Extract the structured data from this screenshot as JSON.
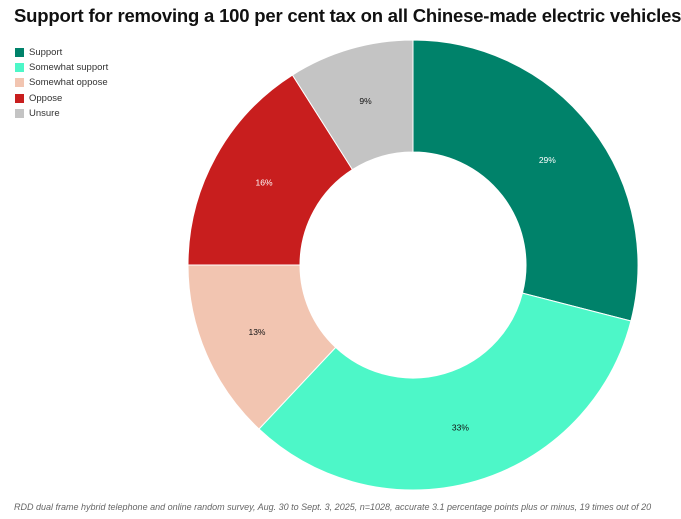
{
  "title": "Support for removing a 100 per cent tax on all Chinese-made electric vehicles",
  "footer": "RDD dual frame hybrid telephone and online random survey, Aug. 30 to Sept. 3, 2025, n=1028, accurate 3.1 percentage points plus or minus, 19 times out of 20",
  "chart_data": {
    "type": "pie",
    "donut": true,
    "legend_position": "top-left",
    "categories": [
      "Support",
      "Somewhat support",
      "Somewhat oppose",
      "Oppose",
      "Unsure"
    ],
    "values": [
      29,
      33,
      13,
      16,
      9
    ],
    "labels": [
      "29%",
      "33%",
      "13%",
      "16%",
      "9%"
    ],
    "colors": [
      "#00826a",
      "#4df7c8",
      "#f2c5b1",
      "#c81e1e",
      "#c4c4c4"
    ],
    "label_colors": [
      "#ffffff",
      "#111111",
      "#111111",
      "#ffffff",
      "#111111"
    ]
  }
}
